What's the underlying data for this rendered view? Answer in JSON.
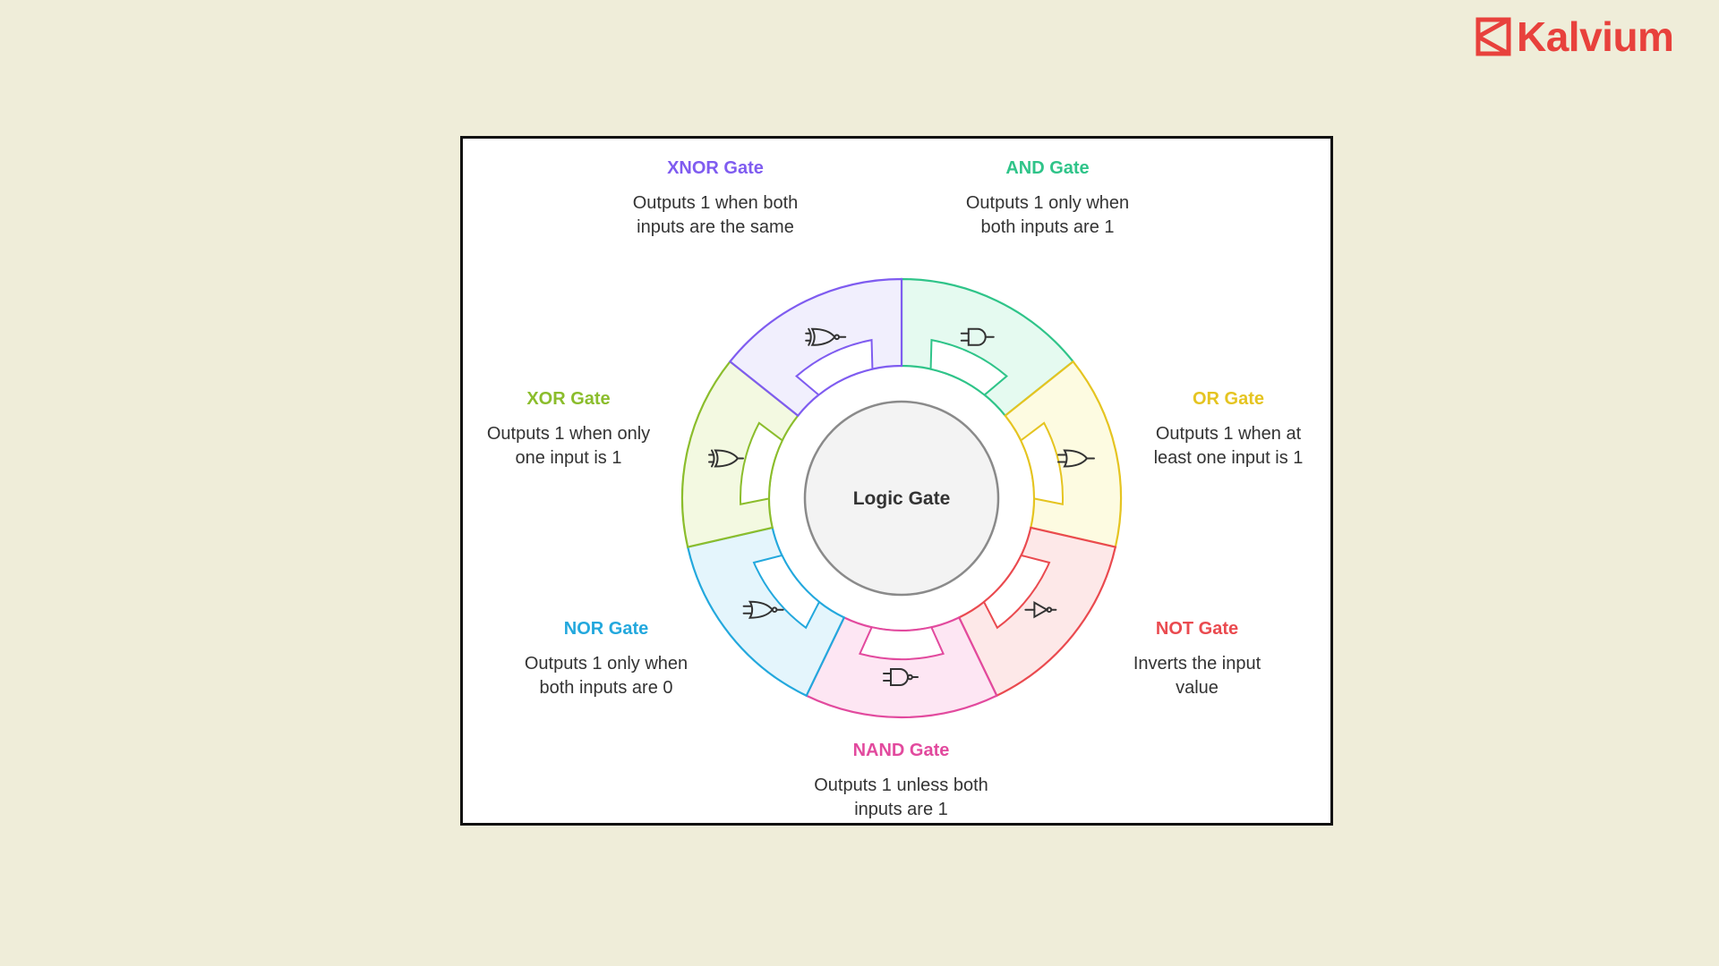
{
  "brand": {
    "name": "Kalvium",
    "color": "#e8413c"
  },
  "diagram": {
    "center_label": "Logic Gate",
    "gates": [
      {
        "id": "and",
        "title": "AND Gate",
        "description": "Outputs 1 only when both inputs are 1",
        "color": "#2fc489",
        "fill": "#e5faf0",
        "icon": "and-gate-icon"
      },
      {
        "id": "or",
        "title": "OR Gate",
        "description": "Outputs 1 when at least one input is 1",
        "color": "#e5c421",
        "fill": "#fdfbe1",
        "icon": "or-gate-icon"
      },
      {
        "id": "not",
        "title": "NOT Gate",
        "description": "Inverts the input value",
        "color": "#ea4a4f",
        "fill": "#fde8e8",
        "icon": "not-gate-icon"
      },
      {
        "id": "nand",
        "title": "NAND Gate",
        "description": "Outputs 1 unless both inputs are 1",
        "color": "#e24a9e",
        "fill": "#fde6f3",
        "icon": "nand-gate-icon"
      },
      {
        "id": "nor",
        "title": "NOR Gate",
        "description": "Outputs 1 only when both inputs are 0",
        "color": "#23a8dd",
        "fill": "#e4f5fc",
        "icon": "nor-gate-icon"
      },
      {
        "id": "xor",
        "title": "XOR Gate",
        "description": "Outputs 1 when only one input is 1",
        "color": "#8bbd2c",
        "fill": "#f3f9e1",
        "icon": "xor-gate-icon"
      },
      {
        "id": "xnor",
        "title": "XNOR Gate",
        "description": "Outputs 1 when both inputs are the same",
        "color": "#7f5cf0",
        "fill": "#f1effd",
        "icon": "xnor-gate-icon"
      }
    ]
  }
}
